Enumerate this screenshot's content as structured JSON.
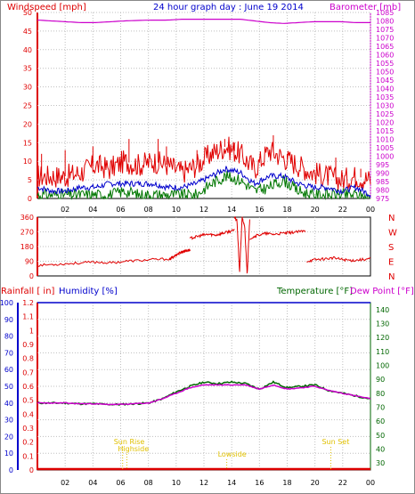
{
  "title": "24 hour graph day : June 19 2014",
  "colors": {
    "wind": "#e00000",
    "wind_avg": "#0000cc",
    "wind_dir_alt": "#007700",
    "baro": "#cc00cc",
    "rain": "#dd0000",
    "humidity": "#0000cc",
    "temperature": "#006600",
    "dew": "#cc00cc",
    "sun": "#e0c000",
    "axis": "#000000"
  },
  "x_ticks": [
    "02",
    "04",
    "06",
    "08",
    "10",
    "12",
    "14",
    "16",
    "18",
    "20",
    "22",
    "00"
  ],
  "chart_data": [
    {
      "type": "line",
      "title": "24 hour graph day : June 19 2014",
      "left_label": "Windspeed [mph]",
      "right_label": "Barometer [mb]",
      "ylim": [
        0,
        50
      ],
      "y_ticks": [
        "0",
        "5",
        "10",
        "15",
        "20",
        "25",
        "30",
        "35",
        "40",
        "45",
        "50"
      ],
      "y2lim": [
        975,
        1085
      ],
      "y2_ticks": [
        "975",
        "980",
        "985",
        "990",
        "995",
        "1000",
        "1005",
        "1010",
        "1015",
        "1020",
        "1025",
        "1030",
        "1035",
        "1040",
        "1045",
        "1050",
        "1055",
        "1060",
        "1065",
        "1070",
        "1075",
        "1080",
        "1085"
      ],
      "x_hours": [
        1,
        2,
        3,
        4,
        5,
        6,
        7,
        8,
        9,
        10,
        11,
        12,
        13,
        14,
        15,
        16,
        17,
        18,
        19,
        20,
        21,
        22,
        23,
        24
      ],
      "series": [
        {
          "key": "gust",
          "values": [
            6,
            6,
            6,
            7,
            9,
            8,
            10,
            9,
            10,
            9,
            7,
            9,
            12,
            14,
            12,
            8,
            13,
            11,
            9,
            7,
            6,
            5,
            6,
            5
          ],
          "spikes": [
            [
              0.3,
              12
            ],
            [
              2,
              13
            ],
            [
              4,
              14
            ],
            [
              6.6,
              16
            ],
            [
              8.7,
              16
            ],
            [
              9.3,
              14
            ],
            [
              11.5,
              13
            ],
            [
              13.5,
              16
            ],
            [
              14.2,
              15
            ],
            [
              17,
              17
            ],
            [
              18,
              12
            ],
            [
              21.5,
              11
            ],
            [
              23.3,
              8
            ]
          ]
        },
        {
          "key": "avg",
          "values": [
            3,
            2,
            2,
            3,
            3,
            4,
            4,
            4,
            4,
            3,
            3,
            4,
            6,
            8,
            7,
            4,
            6,
            6,
            4,
            3,
            3,
            2,
            3,
            1
          ]
        },
        {
          "key": "dir_alt",
          "values": [
            1,
            1,
            1,
            1,
            1,
            1,
            2,
            1,
            1,
            1,
            1,
            1,
            4,
            6,
            5,
            2,
            3,
            5,
            2,
            1,
            1,
            1,
            1,
            0
          ]
        },
        {
          "key": "baro",
          "values": [
            1080.5,
            1080,
            1079.5,
            1079,
            1079,
            1079.5,
            1080,
            1080.3,
            1080.5,
            1080.5,
            1081,
            1081,
            1081,
            1081,
            1081,
            1080,
            1079,
            1078.5,
            1079,
            1079.5,
            1079.5,
            1079.5,
            1079,
            1079
          ]
        }
      ]
    },
    {
      "type": "scatter",
      "y_ticks": [
        "0",
        "90",
        "180",
        "270",
        "360"
      ],
      "ylim": [
        0,
        360
      ],
      "compass": [
        "N",
        "W",
        "S",
        "E",
        "N"
      ],
      "segments": [
        {
          "hours": [
            0,
            9.5
          ],
          "values": [
            65,
            70,
            75,
            80,
            85,
            80,
            90,
            95,
            100,
            105
          ]
        },
        {
          "hours": [
            9.5,
            11
          ],
          "values": [
            100,
            130,
            150,
            160
          ]
        },
        {
          "hours": [
            11,
            14.2
          ],
          "values": [
            230,
            240,
            250,
            255,
            250,
            260,
            270,
            280
          ]
        },
        {
          "hours": [
            14.2,
            15.3
          ],
          "values": [
            360,
            340,
            20,
            360,
            300,
            10,
            350
          ]
        },
        {
          "hours": [
            15.3,
            19.3
          ],
          "values": [
            230,
            250,
            260,
            255,
            260,
            265,
            270,
            275
          ]
        },
        {
          "hours": [
            19.4,
            24
          ],
          "values": [
            90,
            100,
            105,
            110,
            100,
            95,
            100,
            105
          ]
        }
      ]
    },
    {
      "type": "line",
      "left_label": "Rainfall [ in]",
      "middle_label": "Humidity [%]",
      "right_label": "Temperature [°F]",
      "right_label2": "Dew Point [°F]",
      "rain_ticks": [
        "0",
        "0.1",
        "0.2",
        "0.3",
        "0.4",
        "0.5",
        "0.6",
        "0.7",
        "0.8",
        "0.9",
        "1",
        "1.1",
        "1.2"
      ],
      "rain_ylim": [
        0,
        1.2
      ],
      "humidity_ticks": [
        "0",
        "10",
        "20",
        "30",
        "40",
        "50",
        "60",
        "70",
        "80",
        "90",
        "100"
      ],
      "humidity_ylim": [
        0,
        100
      ],
      "temp_ticks": [
        "30",
        "40",
        "50",
        "60",
        "70",
        "80",
        "90",
        "100",
        "110",
        "120",
        "130",
        "140"
      ],
      "temp_ylim": [
        25,
        145
      ],
      "x_hours": [
        0,
        1,
        2,
        3,
        4,
        5,
        6,
        7,
        8,
        9,
        10,
        11,
        12,
        13,
        14,
        15,
        16,
        17,
        18,
        19,
        20,
        21,
        22,
        23,
        24
      ],
      "series": [
        {
          "key": "humidity_line",
          "values": [
            100,
            100,
            100,
            100,
            100,
            100,
            100,
            100,
            100,
            100,
            100,
            100,
            100,
            100,
            100,
            100,
            100,
            100,
            100,
            100,
            100,
            100,
            100,
            100,
            100
          ]
        },
        {
          "key": "temperature",
          "values": [
            73,
            73,
            73,
            72.5,
            72.5,
            72,
            72,
            72.5,
            73,
            76,
            81,
            85,
            88,
            87,
            88,
            87,
            83,
            88,
            84,
            85,
            86,
            82,
            80,
            78,
            76
          ]
        },
        {
          "key": "dew",
          "values": [
            73,
            73,
            73,
            72.5,
            72.5,
            72,
            72,
            72.5,
            73,
            76,
            80,
            84,
            86,
            86,
            86,
            86,
            83,
            86,
            83,
            84,
            85,
            82,
            80,
            78,
            76
          ]
        },
        {
          "key": "rainfall",
          "values": [
            0,
            0,
            0,
            0,
            0,
            0,
            0,
            0,
            0,
            0,
            0,
            0,
            0,
            0,
            0,
            0,
            0,
            0,
            0,
            0,
            0,
            0,
            0,
            0,
            0
          ]
        }
      ],
      "annotations": [
        {
          "label": "Sun Rise",
          "hour": 5.5
        },
        {
          "label": "Highside",
          "hour": 5.8
        },
        {
          "label": "Lowside",
          "hour": 13.0
        },
        {
          "label": "Sun Set",
          "hour": 20.5
        }
      ]
    }
  ]
}
